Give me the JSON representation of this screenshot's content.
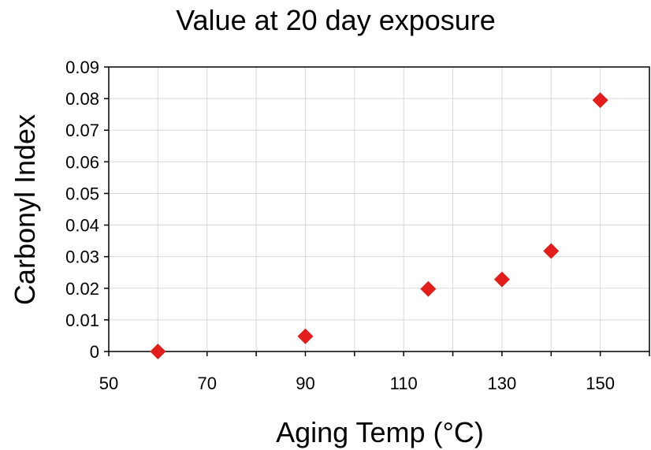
{
  "chart_data": {
    "type": "scatter",
    "title": "Value at 20 day exposure",
    "xlabel": "Aging Temp (°C)",
    "ylabel": "Carbonyl Index",
    "xlim": [
      50,
      160
    ],
    "ylim": [
      0,
      0.09
    ],
    "x_ticks": [
      "50",
      "70",
      "90",
      "110",
      "130",
      "150"
    ],
    "y_ticks": [
      "0",
      "0.01",
      "0.02",
      "0.03",
      "0.04",
      "0.05",
      "0.06",
      "0.07",
      "0.08",
      "0.09"
    ],
    "grid": true,
    "marker": "diamond",
    "marker_color": "#e31c1c",
    "grid_color": "#d9d9d9",
    "series": [
      {
        "points": [
          {
            "x": 60,
            "y": 0.0
          },
          {
            "x": 90,
            "y": 0.0048
          },
          {
            "x": 115,
            "y": 0.0198
          },
          {
            "x": 130,
            "y": 0.0228
          },
          {
            "x": 140,
            "y": 0.0318
          },
          {
            "x": 150,
            "y": 0.0795
          }
        ]
      }
    ]
  }
}
